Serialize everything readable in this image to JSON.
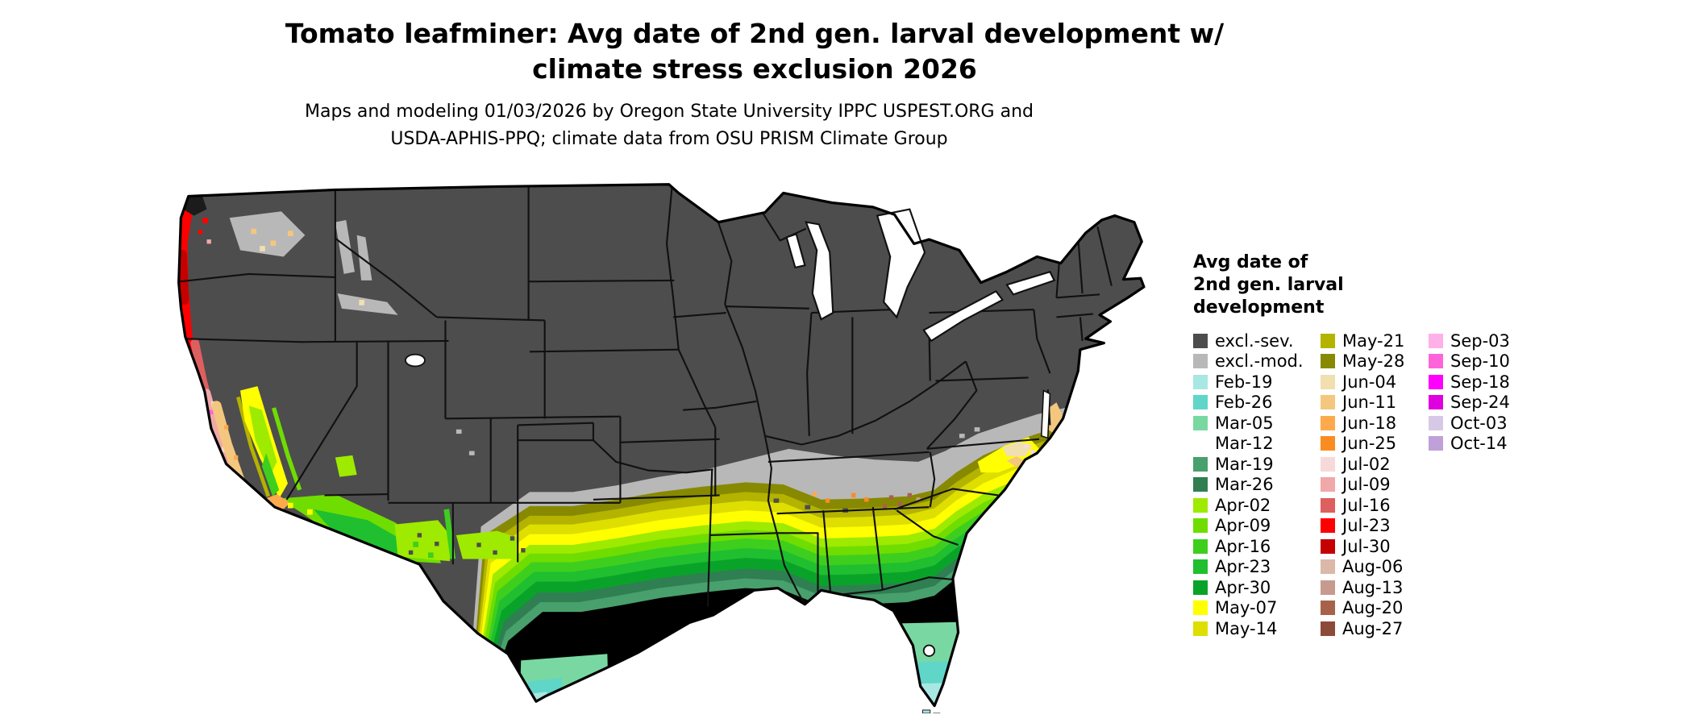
{
  "header": {
    "title_line1": "Tomato leafminer: Avg date of 2nd gen. larval development w/",
    "title_line2": "climate stress exclusion 2026",
    "subtitle_line1": "Maps and modeling 01/03/2026 by Oregon State University IPPC USPEST.ORG and",
    "subtitle_line2": "USDA-APHIS-PPQ; climate data from OSU PRISM Climate Group"
  },
  "legend": {
    "title_lines": [
      "Avg date of",
      "2nd gen. larval",
      "development"
    ],
    "columns": [
      [
        {
          "key": "exclSev",
          "label": "excl.-sev."
        },
        {
          "key": "exclMod",
          "label": "excl.-mod."
        },
        {
          "key": "feb19",
          "label": "Feb-19"
        },
        {
          "key": "feb26",
          "label": "Feb-26"
        },
        {
          "key": "mar05",
          "label": "Mar-05"
        },
        {
          "key": "mar12",
          "label": "Mar-12"
        },
        {
          "key": "mar19",
          "label": "Mar-19"
        },
        {
          "key": "mar26",
          "label": "Mar-26"
        },
        {
          "key": "apr02",
          "label": "Apr-02"
        },
        {
          "key": "apr09",
          "label": "Apr-09"
        },
        {
          "key": "apr16",
          "label": "Apr-16"
        },
        {
          "key": "apr23",
          "label": "Apr-23"
        },
        {
          "key": "apr30",
          "label": "Apr-30"
        },
        {
          "key": "may07",
          "label": "May-07"
        },
        {
          "key": "may14",
          "label": "May-14"
        }
      ],
      [
        {
          "key": "may21",
          "label": "May-21"
        },
        {
          "key": "may28",
          "label": "May-28"
        },
        {
          "key": "jun04",
          "label": "Jun-04"
        },
        {
          "key": "jun11",
          "label": "Jun-11"
        },
        {
          "key": "jun18",
          "label": "Jun-18"
        },
        {
          "key": "jun25",
          "label": "Jun-25"
        },
        {
          "key": "jul02",
          "label": "Jul-02"
        },
        {
          "key": "jul09",
          "label": "Jul-09"
        },
        {
          "key": "jul16",
          "label": "Jul-16"
        },
        {
          "key": "jul23",
          "label": "Jul-23"
        },
        {
          "key": "jul30",
          "label": "Jul-30"
        },
        {
          "key": "aug06",
          "label": "Aug-06"
        },
        {
          "key": "aug13",
          "label": "Aug-13"
        },
        {
          "key": "aug20",
          "label": "Aug-20"
        },
        {
          "key": "aug27",
          "label": "Aug-27"
        }
      ],
      [
        {
          "key": "sep03",
          "label": "Sep-03"
        },
        {
          "key": "sep10",
          "label": "Sep-10"
        },
        {
          "key": "sep18",
          "label": "Sep-18"
        },
        {
          "key": "sep24",
          "label": "Sep-24"
        },
        {
          "key": "oct03",
          "label": "Oct-03"
        },
        {
          "key": "oct14",
          "label": "Oct-14"
        }
      ]
    ]
  },
  "palette": {
    "exclSev": "#4d4d4d",
    "exclMod": "#b8b8b8",
    "feb19": "#a9e7e2",
    "feb26": "#5fd6c8",
    "mar05": "#79d8a2",
    "mar12": "#5cbа85",
    "mar19": "#48a06c",
    "mar26": "#2f7f52",
    "apr02": "#9eea00",
    "apr09": "#70dd00",
    "apr16": "#3ecf1e",
    "apr23": "#1fbf2f",
    "apr30": "#0aa32a",
    "may07": "#ffff00",
    "may14": "#dede00",
    "may21": "#b3b300",
    "may28": "#878a00",
    "jun04": "#f2dfb0",
    "jun11": "#f3c77e",
    "jun18": "#ffa94d",
    "jun25": "#fb8c22",
    "jul02": "#f6dada",
    "jul09": "#f0a8a8",
    "jul16": "#dd5f5f",
    "jul23": "#ff0000",
    "jul30": "#c40000",
    "aug06": "#dbb8a8",
    "aug13": "#c79a8f",
    "aug20": "#a86249",
    "aug27": "#8c4a38",
    "sep03": "#ffb0e8",
    "sep10": "#ff63d9",
    "sep18": "#ff00ff",
    "sep24": "#de00de",
    "oct03": "#d8c8e8",
    "oct14": "#c0a0d8"
  }
}
